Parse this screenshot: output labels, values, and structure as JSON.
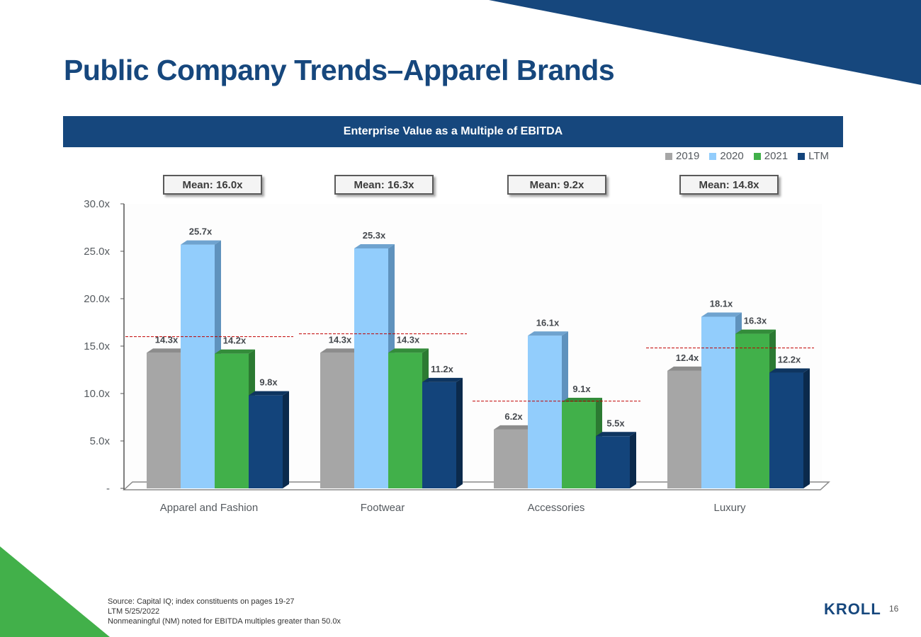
{
  "page": {
    "title": "Public Company Trends–Apparel Brands",
    "chart_banner": "Enterprise Value as a Multiple of EBITDA",
    "footnotes": [
      "Source: Capital IQ; index constituents on pages 19-27",
      "LTM 5/25/2022",
      "Nonmeaningful (NM) noted for EBITDA multiples greater than 50.0x"
    ],
    "logo_text": "KROLL",
    "page_number": "16"
  },
  "colors": {
    "brand_navy": "#16477d",
    "brand_green": "#42b04a",
    "series_2019": "#a6a6a6",
    "series_2020": "#92cdfc",
    "series_2021": "#41b04a",
    "series_ltm": "#13447b",
    "mean_line": "#c00000"
  },
  "chart_data": {
    "type": "bar",
    "title": "Enterprise Value as a Multiple of EBITDA",
    "categories": [
      "Apparel and Fashion",
      "Footwear",
      "Accessories",
      "Luxury"
    ],
    "series": [
      {
        "name": "2019",
        "values": [
          14.3,
          14.3,
          6.2,
          12.4
        ],
        "labels": [
          "14.3x",
          "14.3x",
          "6.2x",
          "12.4x"
        ]
      },
      {
        "name": "2020",
        "values": [
          25.7,
          25.3,
          16.1,
          18.1
        ],
        "labels": [
          "25.7x",
          "25.3x",
          "16.1x",
          "18.1x"
        ]
      },
      {
        "name": "2021",
        "values": [
          14.2,
          14.3,
          9.1,
          16.3
        ],
        "labels": [
          "14.2x",
          "14.3x",
          "9.1x",
          "16.3x"
        ]
      },
      {
        "name": "LTM",
        "values": [
          9.8,
          11.2,
          5.5,
          12.2
        ],
        "labels": [
          "9.8x",
          "11.2x",
          "5.5x",
          "12.2x"
        ]
      }
    ],
    "means": [
      16.0,
      16.3,
      9.2,
      14.8
    ],
    "mean_labels": [
      "Mean: 16.0x",
      "Mean: 16.3x",
      "Mean: 9.2x",
      "Mean: 14.8x"
    ],
    "ylim": [
      0,
      30
    ],
    "y_ticks": [
      0,
      5,
      10,
      15,
      20,
      25,
      30
    ],
    "y_tick_labels": [
      "-",
      "5.0x",
      "10.0x",
      "15.0x",
      "20.0x",
      "25.0x",
      "30.0x"
    ],
    "legend_position": "top-right",
    "style": "3d-clustered-bar"
  }
}
